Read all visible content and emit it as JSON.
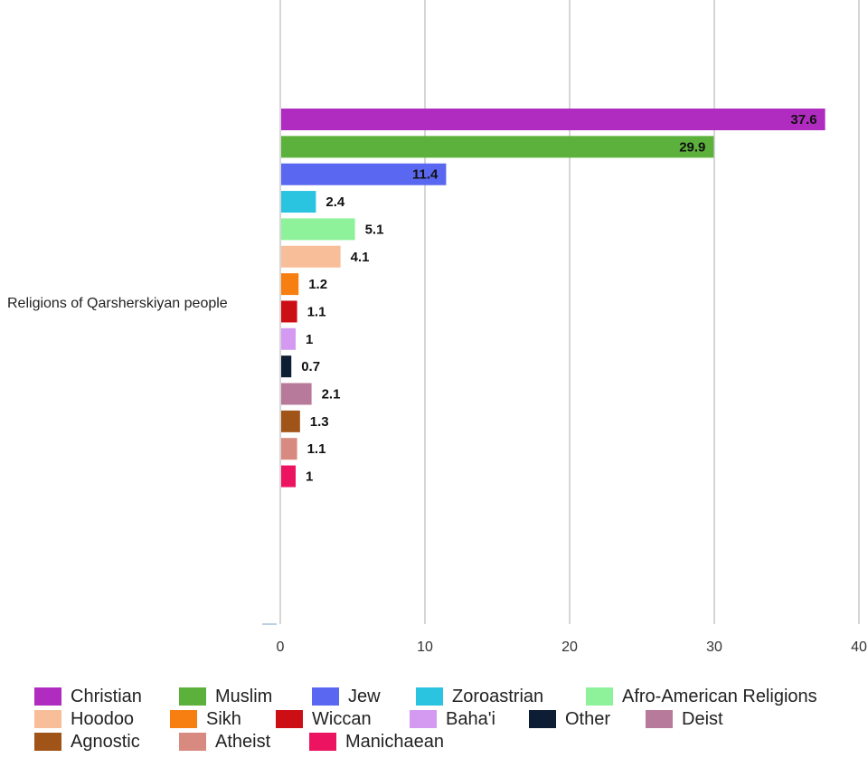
{
  "chart_data": {
    "type": "bar",
    "orientation": "horizontal",
    "categories": [
      "Religions of Qarsherskiyan people"
    ],
    "series": [
      {
        "name": "Christian",
        "value": 37.6,
        "color": "#b02cc0"
      },
      {
        "name": "Muslim",
        "value": 29.9,
        "color": "#5cb13c"
      },
      {
        "name": "Jew",
        "value": 11.4,
        "color": "#5a67f0"
      },
      {
        "name": "Zoroastrian",
        "value": 2.4,
        "color": "#2ac4e0"
      },
      {
        "name": "Afro-American Religions",
        "value": 5.1,
        "color": "#8ef29a"
      },
      {
        "name": "Hoodoo",
        "value": 4.1,
        "color": "#f8be9a"
      },
      {
        "name": "Sikh",
        "value": 1.2,
        "color": "#f77e10"
      },
      {
        "name": "Wiccan",
        "value": 1.1,
        "color": "#cc0f14"
      },
      {
        "name": "Baha'i",
        "value": 1,
        "color": "#d49af2"
      },
      {
        "name": "Other",
        "value": 0.7,
        "color": "#0d1d33"
      },
      {
        "name": "Deist",
        "value": 2.1,
        "color": "#b77a9a"
      },
      {
        "name": "Agnostic",
        "value": 1.3,
        "color": "#a05418"
      },
      {
        "name": "Atheist",
        "value": 1.1,
        "color": "#d98a80"
      },
      {
        "name": "Manichaean",
        "value": 1,
        "color": "#ec1460"
      }
    ],
    "xlim": [
      0,
      40
    ],
    "x_ticks": [
      0,
      10,
      20,
      30,
      40
    ],
    "grid": true,
    "legend_position": "bottom"
  }
}
